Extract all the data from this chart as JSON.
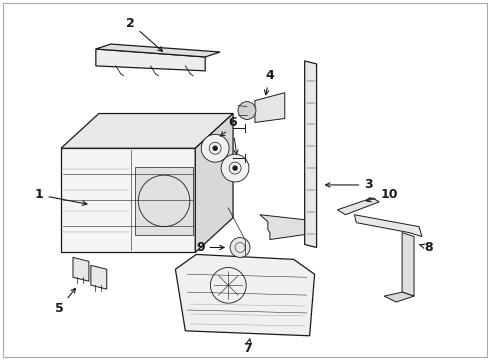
{
  "bg_color": "#ffffff",
  "line_color": "#1a1a1a",
  "fig_width": 4.9,
  "fig_height": 3.6,
  "dpi": 100,
  "gray": "#888888",
  "lightgray": "#cccccc"
}
